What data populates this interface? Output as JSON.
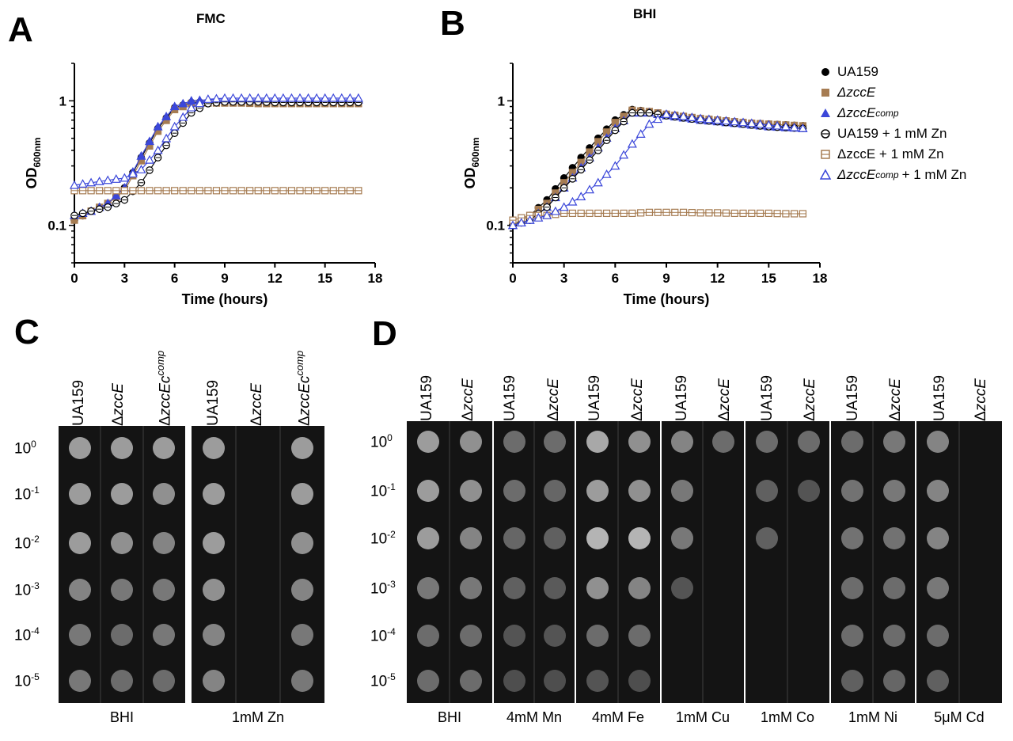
{
  "panels": {
    "A": "A",
    "B": "B",
    "C": "C",
    "D": "D"
  },
  "growth_legend": [
    {
      "label": "UA159",
      "color": "#000000",
      "marker": "filled-circle"
    },
    {
      "label": "ΔzccE",
      "color": "#a67c52",
      "marker": "filled-square"
    },
    {
      "label": "ΔzccE",
      "sup": "comp",
      "color": "#3b47d9",
      "marker": "filled-triangle"
    },
    {
      "label": "UA159 + 1 mM Zn",
      "color": "#000000",
      "marker": "open-circle"
    },
    {
      "label": "ΔzccE + 1 mM Zn",
      "color": "#a67c52",
      "marker": "open-square"
    },
    {
      "label": "ΔzccE",
      "sup": "comp",
      "suffix": "+ 1 mM Zn",
      "color": "#3b47d9",
      "marker": "open-triangle"
    }
  ],
  "chart_data": [
    {
      "type": "line",
      "title": "FMC",
      "xlabel": "Time (hours)",
      "ylabel": "OD600nm",
      "xlim": [
        0,
        18
      ],
      "ylim": [
        0.05,
        2
      ],
      "yscale": "log",
      "xticks": [
        0,
        3,
        6,
        9,
        12,
        15,
        18
      ],
      "yticks": [
        0.1,
        1
      ],
      "x": [
        0,
        1,
        2,
        3,
        4,
        5,
        6,
        7,
        8,
        9,
        10,
        11,
        12,
        13,
        14,
        15,
        16,
        17
      ],
      "series": [
        {
          "name": "UA159",
          "color": "#000000",
          "marker": "filled-circle",
          "values": [
            0.11,
            0.13,
            0.15,
            0.2,
            0.35,
            0.6,
            0.88,
            0.97,
            0.98,
            0.97,
            0.97,
            0.97,
            0.96,
            0.96,
            0.96,
            0.96,
            0.96,
            0.96
          ]
        },
        {
          "name": "ΔzccE",
          "color": "#a67c52",
          "marker": "filled-square",
          "values": [
            0.11,
            0.13,
            0.15,
            0.19,
            0.33,
            0.57,
            0.85,
            0.95,
            0.96,
            0.96,
            0.96,
            0.95,
            0.95,
            0.95,
            0.95,
            0.95,
            0.95,
            0.95
          ]
        },
        {
          "name": "ΔzccEcomp",
          "color": "#3b47d9",
          "marker": "filled-triangle",
          "values": [
            0.12,
            0.13,
            0.15,
            0.2,
            0.36,
            0.62,
            0.9,
            1.0,
            1.02,
            1.02,
            1.02,
            1.02,
            1.02,
            1.02,
            1.02,
            1.02,
            1.02,
            1.02
          ]
        },
        {
          "name": "UA159 + 1 mM Zn",
          "color": "#000000",
          "marker": "open-circle",
          "values": [
            0.12,
            0.13,
            0.14,
            0.16,
            0.22,
            0.35,
            0.55,
            0.8,
            0.95,
            0.98,
            0.98,
            0.98,
            0.97,
            0.97,
            0.97,
            0.97,
            0.97,
            0.97
          ]
        },
        {
          "name": "ΔzccE + 1 mM Zn",
          "color": "#a67c52",
          "marker": "open-square",
          "values": [
            0.19,
            0.19,
            0.19,
            0.19,
            0.19,
            0.19,
            0.19,
            0.19,
            0.19,
            0.19,
            0.19,
            0.19,
            0.19,
            0.19,
            0.19,
            0.19,
            0.19,
            0.19
          ]
        },
        {
          "name": "ΔzccEcomp + 1 mM Zn",
          "color": "#3b47d9",
          "marker": "open-triangle",
          "values": [
            0.21,
            0.22,
            0.23,
            0.24,
            0.28,
            0.4,
            0.62,
            0.88,
            1.03,
            1.05,
            1.05,
            1.05,
            1.05,
            1.05,
            1.05,
            1.05,
            1.05,
            1.05
          ]
        }
      ]
    },
    {
      "type": "line",
      "title": "BHI",
      "xlabel": "Time (hours)",
      "ylabel": "OD600nm",
      "xlim": [
        0,
        18
      ],
      "ylim": [
        0.05,
        2
      ],
      "yscale": "log",
      "xticks": [
        0,
        3,
        6,
        9,
        12,
        15,
        18
      ],
      "yticks": [
        0.1,
        1
      ],
      "x": [
        0,
        1,
        2,
        3,
        4,
        5,
        6,
        7,
        8,
        9,
        10,
        11,
        12,
        13,
        14,
        15,
        16,
        17
      ],
      "series": [
        {
          "name": "UA159",
          "color": "#000000",
          "marker": "filled-circle",
          "values": [
            0.1,
            0.12,
            0.16,
            0.24,
            0.35,
            0.5,
            0.7,
            0.85,
            0.82,
            0.78,
            0.75,
            0.72,
            0.7,
            0.68,
            0.66,
            0.65,
            0.64,
            0.63
          ]
        },
        {
          "name": "ΔzccE",
          "color": "#a67c52",
          "marker": "filled-square",
          "values": [
            0.1,
            0.12,
            0.15,
            0.22,
            0.32,
            0.47,
            0.67,
            0.84,
            0.82,
            0.78,
            0.75,
            0.72,
            0.7,
            0.68,
            0.66,
            0.65,
            0.64,
            0.63
          ]
        },
        {
          "name": "ΔzccEcomp",
          "color": "#3b47d9",
          "marker": "filled-triangle",
          "values": [
            0.1,
            0.11,
            0.14,
            0.2,
            0.29,
            0.42,
            0.6,
            0.8,
            0.8,
            0.76,
            0.73,
            0.7,
            0.68,
            0.66,
            0.64,
            0.62,
            0.61,
            0.6
          ]
        },
        {
          "name": "UA159 + 1 mM Zn",
          "color": "#000000",
          "marker": "open-circle",
          "values": [
            0.1,
            0.11,
            0.14,
            0.2,
            0.28,
            0.4,
            0.58,
            0.8,
            0.8,
            0.76,
            0.73,
            0.7,
            0.68,
            0.66,
            0.64,
            0.62,
            0.61,
            0.6
          ]
        },
        {
          "name": "ΔzccE + 1 mM Zn",
          "color": "#a67c52",
          "marker": "open-square",
          "values": [
            0.11,
            0.12,
            0.12,
            0.125,
            0.125,
            0.125,
            0.125,
            0.125,
            0.127,
            0.127,
            0.127,
            0.126,
            0.126,
            0.125,
            0.125,
            0.125,
            0.124,
            0.124
          ]
        },
        {
          "name": "ΔzccEcomp + 1 mM Zn",
          "color": "#3b47d9",
          "marker": "open-triangle",
          "values": [
            0.1,
            0.11,
            0.12,
            0.14,
            0.17,
            0.22,
            0.3,
            0.45,
            0.65,
            0.78,
            0.75,
            0.72,
            0.7,
            0.68,
            0.66,
            0.64,
            0.62,
            0.6
          ]
        }
      ]
    }
  ],
  "panel_c": {
    "columns": [
      "UA159",
      "ΔzccE",
      "ΔzccEccomp",
      "UA159",
      "ΔzccE",
      "ΔzccEccomp"
    ],
    "rows": [
      "10^0",
      "10^-1",
      "10^-2",
      "10^-3",
      "10^-4",
      "10^-5"
    ],
    "conditions": [
      "BHI",
      "1mM Zn"
    ]
  },
  "panel_d": {
    "columns": [
      "UA159",
      "ΔzccE",
      "UA159",
      "ΔzccE",
      "UA159",
      "ΔzccE",
      "UA159",
      "ΔzccE",
      "UA159",
      "ΔzccE",
      "UA159",
      "ΔzccE",
      "UA159",
      "ΔzccE"
    ],
    "rows": [
      "10^0",
      "10^-1",
      "10^-2",
      "10^-3",
      "10^-4",
      "10^-5"
    ],
    "conditions": [
      "BHI",
      "4mM Mn",
      "4mM Fe",
      "1mM Cu",
      "1mM Co",
      "1mM Ni",
      "5μM Cd"
    ]
  }
}
